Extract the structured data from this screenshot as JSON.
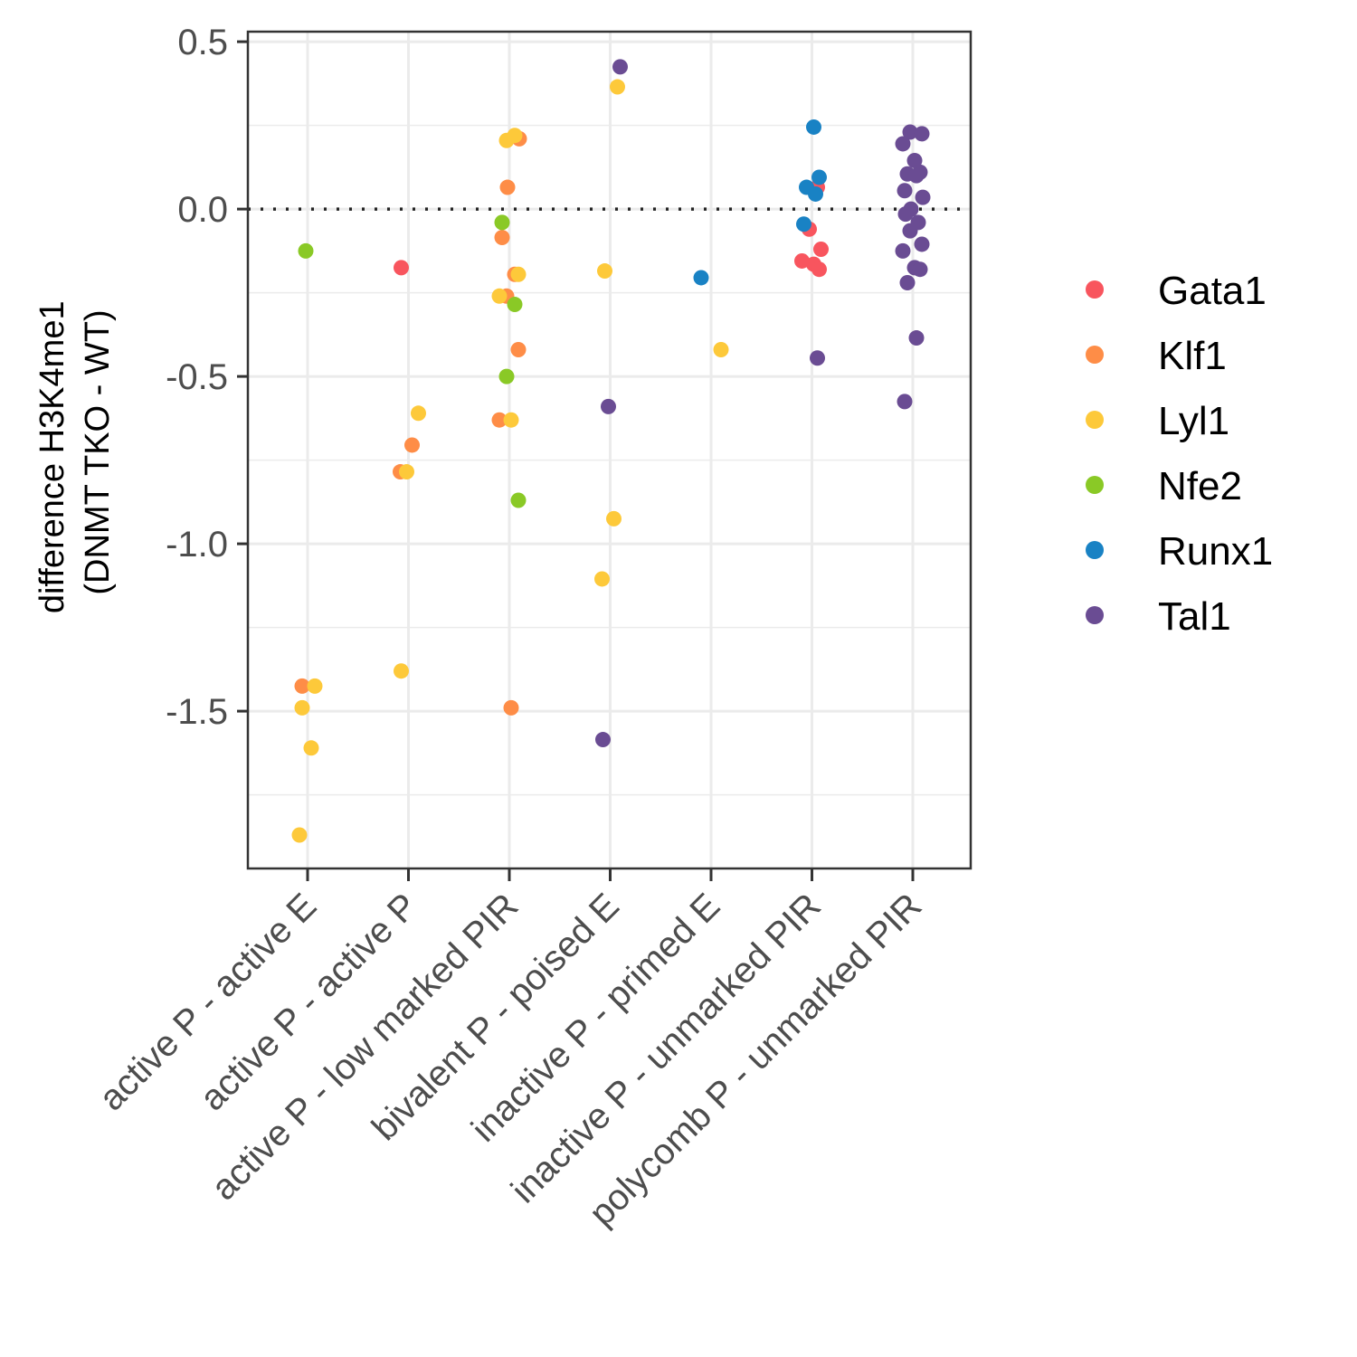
{
  "chart_data": {
    "type": "scatter",
    "title": "",
    "ylabel_lines": [
      "difference H3K4me1",
      "(DNMT TKO - WT)"
    ],
    "xlabel": "",
    "categories": [
      "active P - active E",
      "active P - active P",
      "active P - low marked PIR",
      "bivalent P - poised E",
      "inactive P - primed E",
      "inactive P - unmarked PIR",
      "polycomb P - unmarked PIR"
    ],
    "yticks": [
      "0.5",
      "0.0",
      "-0.5",
      "-1.0",
      "-1.5"
    ],
    "ytick_values": [
      0.5,
      0.0,
      -0.5,
      -1.0,
      -1.5
    ],
    "ylim": [
      -1.97,
      0.53
    ],
    "grid": true,
    "reference_line": {
      "y": 0,
      "style": "dotted"
    },
    "legend_position": "right",
    "series": [
      {
        "name": "Gata1",
        "color": "#F8555E",
        "points": [
          {
            "x": "active P - active P",
            "y": -0.175
          },
          {
            "x": "inactive P - unmarked PIR",
            "y": 0.065
          },
          {
            "x": "inactive P - unmarked PIR",
            "y": -0.06
          },
          {
            "x": "inactive P - unmarked PIR",
            "y": -0.12
          },
          {
            "x": "inactive P - unmarked PIR",
            "y": -0.155
          },
          {
            "x": "inactive P - unmarked PIR",
            "y": -0.165
          },
          {
            "x": "inactive P - unmarked PIR",
            "y": -0.18
          }
        ]
      },
      {
        "name": "Klf1",
        "color": "#FE8D47",
        "points": [
          {
            "x": "active P - active E",
            "y": -1.425
          },
          {
            "x": "active P - active P",
            "y": -0.705
          },
          {
            "x": "active P - active P",
            "y": -0.785
          },
          {
            "x": "active P - low marked PIR",
            "y": 0.21
          },
          {
            "x": "active P - low marked PIR",
            "y": 0.065
          },
          {
            "x": "active P - low marked PIR",
            "y": -0.085
          },
          {
            "x": "active P - low marked PIR",
            "y": -0.195
          },
          {
            "x": "active P - low marked PIR",
            "y": -0.26
          },
          {
            "x": "active P - low marked PIR",
            "y": -0.42
          },
          {
            "x": "active P - low marked PIR",
            "y": -0.63
          },
          {
            "x": "active P - low marked PIR",
            "y": -1.49
          }
        ]
      },
      {
        "name": "Lyl1",
        "color": "#FDC93A",
        "points": [
          {
            "x": "active P - active E",
            "y": -1.425
          },
          {
            "x": "active P - active E",
            "y": -1.49
          },
          {
            "x": "active P - active E",
            "y": -1.61
          },
          {
            "x": "active P - active E",
            "y": -1.87
          },
          {
            "x": "active P - active P",
            "y": -0.61
          },
          {
            "x": "active P - active P",
            "y": -0.785
          },
          {
            "x": "active P - active P",
            "y": -1.38
          },
          {
            "x": "active P - low marked PIR",
            "y": 0.22
          },
          {
            "x": "active P - low marked PIR",
            "y": 0.205
          },
          {
            "x": "active P - low marked PIR",
            "y": -0.195
          },
          {
            "x": "active P - low marked PIR",
            "y": -0.26
          },
          {
            "x": "active P - low marked PIR",
            "y": -0.63
          },
          {
            "x": "bivalent P - poised E",
            "y": 0.365
          },
          {
            "x": "bivalent P - poised E",
            "y": -0.185
          },
          {
            "x": "bivalent P - poised E",
            "y": -0.925
          },
          {
            "x": "bivalent P - poised E",
            "y": -1.105
          },
          {
            "x": "inactive P - primed E",
            "y": -0.42
          }
        ]
      },
      {
        "name": "Nfe2",
        "color": "#8AC926",
        "points": [
          {
            "x": "active P - active E",
            "y": -0.125
          },
          {
            "x": "active P - low marked PIR",
            "y": -0.04
          },
          {
            "x": "active P - low marked PIR",
            "y": -0.285
          },
          {
            "x": "active P - low marked PIR",
            "y": -0.5
          },
          {
            "x": "active P - low marked PIR",
            "y": -0.87
          }
        ]
      },
      {
        "name": "Runx1",
        "color": "#1982C4",
        "points": [
          {
            "x": "inactive P - primed E",
            "y": -0.205
          },
          {
            "x": "inactive P - unmarked PIR",
            "y": 0.245
          },
          {
            "x": "inactive P - unmarked PIR",
            "y": 0.095
          },
          {
            "x": "inactive P - unmarked PIR",
            "y": 0.065
          },
          {
            "x": "inactive P - unmarked PIR",
            "y": 0.045
          },
          {
            "x": "inactive P - unmarked PIR",
            "y": -0.045
          }
        ]
      },
      {
        "name": "Tal1",
        "color": "#6A4C93",
        "points": [
          {
            "x": "bivalent P - poised E",
            "y": 0.425
          },
          {
            "x": "bivalent P - poised E",
            "y": -0.59
          },
          {
            "x": "bivalent P - poised E",
            "y": -1.585
          },
          {
            "x": "inactive P - unmarked PIR",
            "y": -0.445
          },
          {
            "x": "polycomb P - unmarked PIR",
            "y": 0.23
          },
          {
            "x": "polycomb P - unmarked PIR",
            "y": 0.225
          },
          {
            "x": "polycomb P - unmarked PIR",
            "y": 0.195
          },
          {
            "x": "polycomb P - unmarked PIR",
            "y": 0.145
          },
          {
            "x": "polycomb P - unmarked PIR",
            "y": 0.11
          },
          {
            "x": "polycomb P - unmarked PIR",
            "y": 0.105
          },
          {
            "x": "polycomb P - unmarked PIR",
            "y": 0.1
          },
          {
            "x": "polycomb P - unmarked PIR",
            "y": 0.055
          },
          {
            "x": "polycomb P - unmarked PIR",
            "y": 0.035
          },
          {
            "x": "polycomb P - unmarked PIR",
            "y": 0.0
          },
          {
            "x": "polycomb P - unmarked PIR",
            "y": -0.015
          },
          {
            "x": "polycomb P - unmarked PIR",
            "y": -0.04
          },
          {
            "x": "polycomb P - unmarked PIR",
            "y": -0.065
          },
          {
            "x": "polycomb P - unmarked PIR",
            "y": -0.105
          },
          {
            "x": "polycomb P - unmarked PIR",
            "y": -0.125
          },
          {
            "x": "polycomb P - unmarked PIR",
            "y": -0.175
          },
          {
            "x": "polycomb P - unmarked PIR",
            "y": -0.18
          },
          {
            "x": "polycomb P - unmarked PIR",
            "y": -0.22
          },
          {
            "x": "polycomb P - unmarked PIR",
            "y": -0.385
          },
          {
            "x": "polycomb P - unmarked PIR",
            "y": -0.575
          }
        ]
      }
    ]
  }
}
